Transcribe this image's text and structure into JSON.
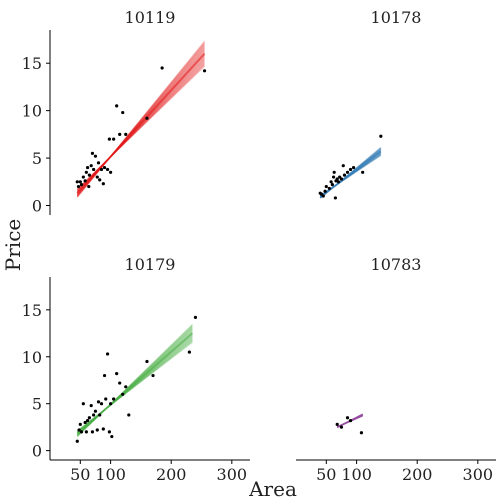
{
  "chart_data": {
    "type": "scatter",
    "xlabel": "Area",
    "ylabel": "Price",
    "xlim": [
      0,
      330
    ],
    "ylim": [
      -1,
      18.5
    ],
    "x_ticks": [
      50,
      100,
      200,
      300
    ],
    "y_ticks": [
      0,
      5,
      10,
      15
    ],
    "panels": [
      {
        "title": "10119",
        "color": "#e41a1c",
        "fit_x": [
          45,
          255
        ],
        "fit_y": [
          1.3,
          16.0
        ],
        "points": [
          [
            45,
            2.5
          ],
          [
            47,
            2.0
          ],
          [
            50,
            2.5
          ],
          [
            52,
            2.2
          ],
          [
            55,
            3.0
          ],
          [
            58,
            2.6
          ],
          [
            60,
            3.5
          ],
          [
            62,
            4.0
          ],
          [
            64,
            2.0
          ],
          [
            65,
            3.2
          ],
          [
            68,
            4.2
          ],
          [
            70,
            5.5
          ],
          [
            72,
            3.8
          ],
          [
            75,
            5.2
          ],
          [
            78,
            3.0
          ],
          [
            80,
            4.5
          ],
          [
            82,
            2.7
          ],
          [
            85,
            3.8
          ],
          [
            88,
            2.3
          ],
          [
            90,
            4.0
          ],
          [
            95,
            3.8
          ],
          [
            98,
            7.0
          ],
          [
            100,
            3.5
          ],
          [
            105,
            7.0
          ],
          [
            110,
            10.5
          ],
          [
            115,
            7.5
          ],
          [
            120,
            9.8
          ],
          [
            125,
            7.5
          ],
          [
            160,
            9.2
          ],
          [
            185,
            14.5
          ],
          [
            255,
            14.2
          ]
        ]
      },
      {
        "title": "10178",
        "color": "#377eb8",
        "fit_x": [
          40,
          140
        ],
        "fit_y": [
          0.9,
          5.7
        ],
        "points": [
          [
            40,
            1.3
          ],
          [
            42,
            1.2
          ],
          [
            45,
            1.0
          ],
          [
            48,
            1.5
          ],
          [
            50,
            2.0
          ],
          [
            55,
            1.8
          ],
          [
            58,
            2.5
          ],
          [
            60,
            2.2
          ],
          [
            62,
            3.0
          ],
          [
            63,
            3.5
          ],
          [
            65,
            0.8
          ],
          [
            66,
            2.6
          ],
          [
            68,
            2.8
          ],
          [
            70,
            2.5
          ],
          [
            72,
            3.0
          ],
          [
            75,
            2.8
          ],
          [
            78,
            4.2
          ],
          [
            80,
            3.2
          ],
          [
            85,
            3.5
          ],
          [
            90,
            3.8
          ],
          [
            95,
            4.0
          ],
          [
            110,
            3.5
          ],
          [
            140,
            7.3
          ]
        ]
      },
      {
        "title": "10179",
        "color": "#4daf4a",
        "fit_x": [
          45,
          235
        ],
        "fit_y": [
          1.8,
          12.5
        ],
        "points": [
          [
            45,
            1.0
          ],
          [
            48,
            2.2
          ],
          [
            50,
            2.8
          ],
          [
            52,
            2.0
          ],
          [
            55,
            5.0
          ],
          [
            58,
            3.0
          ],
          [
            60,
            2.0
          ],
          [
            62,
            3.2
          ],
          [
            65,
            3.5
          ],
          [
            68,
            4.8
          ],
          [
            70,
            2.0
          ],
          [
            72,
            3.8
          ],
          [
            75,
            4.2
          ],
          [
            78,
            2.2
          ],
          [
            80,
            5.2
          ],
          [
            82,
            3.8
          ],
          [
            85,
            5.0
          ],
          [
            88,
            2.3
          ],
          [
            90,
            8.0
          ],
          [
            92,
            5.5
          ],
          [
            95,
            10.3
          ],
          [
            98,
            2.0
          ],
          [
            100,
            5.0
          ],
          [
            102,
            1.5
          ],
          [
            105,
            5.5
          ],
          [
            110,
            8.2
          ],
          [
            115,
            7.2
          ],
          [
            120,
            6.0
          ],
          [
            125,
            6.8
          ],
          [
            130,
            3.8
          ],
          [
            160,
            9.5
          ],
          [
            170,
            8.0
          ],
          [
            230,
            10.5
          ],
          [
            240,
            14.2
          ]
        ]
      },
      {
        "title": "10783",
        "color": "#984ea3",
        "fit_x": [
          68,
          110
        ],
        "fit_y": [
          2.5,
          3.8
        ],
        "points": [
          [
            68,
            2.8
          ],
          [
            75,
            2.5
          ],
          [
            85,
            3.5
          ],
          [
            90,
            3.2
          ],
          [
            108,
            1.9
          ]
        ]
      }
    ]
  }
}
